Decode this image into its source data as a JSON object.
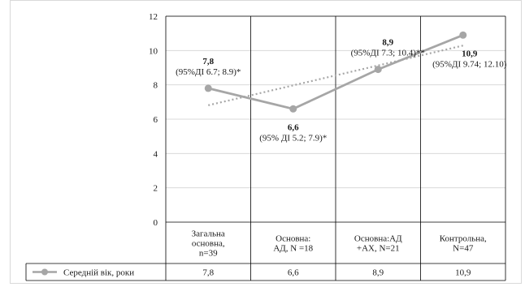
{
  "chart_data": {
    "type": "line",
    "categories": [
      [
        "Загальна",
        "основна,",
        "n=39"
      ],
      [
        "Основна:",
        "АД, N =18"
      ],
      [
        "Основна:АД",
        "+АХ,  N=21"
      ],
      [
        "Контрольна,",
        "N=47"
      ]
    ],
    "series": [
      {
        "name": "Середній вік, роки",
        "values": [
          7.8,
          6.6,
          8.9,
          10.9
        ],
        "table_values": [
          "7,8",
          "6,6",
          "8,9",
          "10,9"
        ],
        "color": "#a6a6a6"
      }
    ],
    "trendline": {
      "type": "linear",
      "style": "dotted",
      "color": "#a6a6a6"
    },
    "annotations": [
      {
        "index": 0,
        "value_label": "7,8",
        "ci_label": "(95%ДІ 6.7; 8.9)*",
        "placement": "above"
      },
      {
        "index": 1,
        "value_label": "6,6",
        "ci_label": "(95% ДІ 5.2; 7.9)*",
        "placement": "below"
      },
      {
        "index": 2,
        "value_label": "8,9",
        "ci_label": "(95%ДІ  7.3; 10.4)**",
        "placement": "above"
      },
      {
        "index": 3,
        "value_label": "10,9",
        "ci_label": "(95%ДІ 9.74; 12.10)",
        "placement": "below"
      }
    ],
    "ylim": [
      0,
      12
    ],
    "yticks": [
      0,
      2,
      4,
      6,
      8,
      10,
      12
    ],
    "grid": true,
    "legend": "data-table"
  }
}
